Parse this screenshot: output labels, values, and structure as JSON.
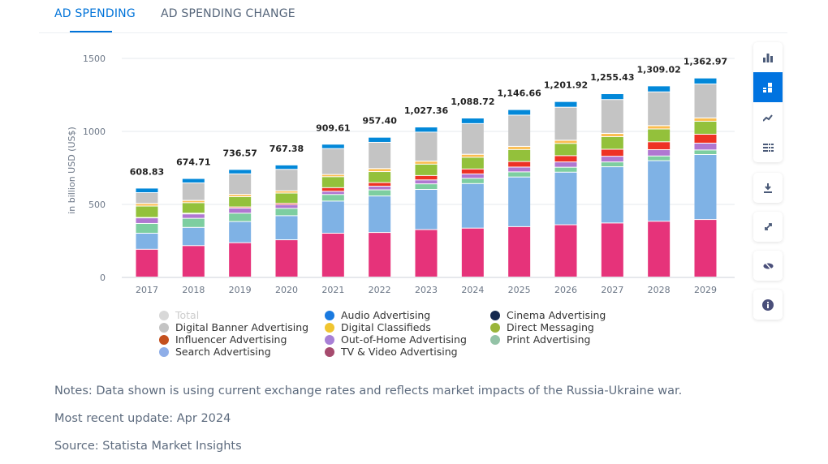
{
  "tabs": [
    {
      "label": "AD SPENDING",
      "active": true
    },
    {
      "label": "AD SPENDING CHANGE",
      "active": false
    }
  ],
  "toolbar": {
    "icons": [
      "bar-chart-icon",
      "stacked-bar-icon",
      "trend-line-icon",
      "table-icon",
      "download-icon",
      "expand-icon",
      "hide-icon",
      "info-icon"
    ],
    "active": "stacked-bar-icon",
    "accent": "#0073e0"
  },
  "chart_data": {
    "type": "bar",
    "stacked": true,
    "ylabel": "in billion USD (US$)",
    "ylim": [
      0,
      1500
    ],
    "yticks": [
      "0",
      "500",
      "1000",
      "1500"
    ],
    "ytick_values": [
      0,
      500,
      1000,
      1500
    ],
    "grid": true,
    "categories": [
      "2017",
      "2018",
      "2019",
      "2020",
      "2021",
      "2022",
      "2023",
      "2024",
      "2025",
      "2026",
      "2027",
      "2028",
      "2029"
    ],
    "totals": [
      608.83,
      674.71,
      736.57,
      767.38,
      909.61,
      957.4,
      1027.36,
      1088.72,
      1146.66,
      1201.92,
      1255.43,
      1309.02,
      1362.97
    ],
    "total_labels": [
      "608.83",
      "674.71",
      "736.57",
      "767.38",
      "909.61",
      "957.40",
      "1,027.36",
      "1,088.72",
      "1,146.66",
      "1,201.92",
      "1,255.43",
      "1,309.02",
      "1,362.97"
    ],
    "series": [
      {
        "name": "TV & Video Advertising",
        "color": "#e6337a",
        "legend_color": "#a64b6e",
        "values": [
          190,
          215,
          235,
          255,
          300,
          305,
          325,
          335,
          345,
          358,
          370,
          382,
          394
        ]
      },
      {
        "name": "Search Advertising",
        "color": "#7fb2e5",
        "legend_color": "#8faee8",
        "values": [
          110,
          125,
          145,
          165,
          220,
          250,
          275,
          305,
          340,
          360,
          385,
          415,
          445
        ]
      },
      {
        "name": "Print Advertising",
        "color": "#7dcea0",
        "legend_color": "#93c2a6",
        "values": [
          67,
          62,
          57,
          50,
          45,
          42,
          38,
          36,
          35,
          34,
          33,
          32,
          31
        ]
      },
      {
        "name": "Out-of-Home Advertising",
        "color": "#b077d1",
        "legend_color": "#a880d6",
        "values": [
          38,
          30,
          35,
          25,
          22,
          25,
          27,
          30,
          33,
          36,
          39,
          43,
          47
        ]
      },
      {
        "name": "Influencer Advertising",
        "color": "#ee3224",
        "legend_color": "#c4501e",
        "values": [
          3,
          5,
          8,
          10,
          25,
          25,
          30,
          34,
          38,
          43,
          48,
          54,
          61
        ]
      },
      {
        "name": "Direct Messaging",
        "color": "#93c13b",
        "legend_color": "#9ab53a",
        "values": [
          78,
          72,
          70,
          70,
          75,
          75,
          78,
          80,
          82,
          84,
          86,
          88,
          89
        ]
      },
      {
        "name": "Digital Classifieds",
        "color": "#fbbd4f",
        "legend_color": "#f0c530",
        "values": [
          17,
          15,
          15,
          15,
          15,
          20,
          20,
          20,
          21,
          21,
          22,
          22,
          22
        ]
      },
      {
        "name": "Cinema Advertising",
        "color": "#15294f",
        "legend_color": "#15294f",
        "values": [
          1,
          1,
          1,
          0.5,
          0.5,
          1,
          1,
          1,
          1,
          1,
          1,
          1,
          1
        ]
      },
      {
        "name": "Digital Banner Advertising",
        "color": "#c4c4c4",
        "legend_color": "#c4c4c4",
        "values": [
          73.83,
          119.71,
          140.57,
          146.88,
          177.11,
          179.4,
          198.36,
          209.72,
          213.66,
          225.92,
          231.43,
          231.02,
          231.97
        ]
      },
      {
        "name": "Audio Advertising",
        "color": "#0288d9",
        "legend_color": "#1a7ae0",
        "values": [
          31,
          30,
          30,
          30,
          30,
          35,
          35,
          38,
          38,
          39,
          40,
          41,
          41
        ]
      }
    ],
    "legend": [
      {
        "name": "Total",
        "color": "#d8d8d8",
        "muted": true
      },
      {
        "name": "Audio Advertising",
        "color": "#1a7ae0"
      },
      {
        "name": "Cinema Advertising",
        "color": "#15294f"
      },
      {
        "name": "Digital Banner Advertising",
        "color": "#c4c4c4"
      },
      {
        "name": "Digital Classifieds",
        "color": "#f0c530"
      },
      {
        "name": "Direct Messaging",
        "color": "#9ab53a"
      },
      {
        "name": "Influencer Advertising",
        "color": "#c4501e"
      },
      {
        "name": "Out-of-Home Advertising",
        "color": "#a880d6"
      },
      {
        "name": "Print Advertising",
        "color": "#93c2a6"
      },
      {
        "name": "Search Advertising",
        "color": "#8faee8"
      },
      {
        "name": "TV & Video Advertising",
        "color": "#a64b6e"
      }
    ],
    "legend_placement": "bottom"
  },
  "notes": [
    "Notes: Data shown is using current exchange rates and reflects market impacts of the Russia-Ukraine war.",
    "Most recent update: Apr 2024",
    "Source: Statista Market Insights"
  ]
}
